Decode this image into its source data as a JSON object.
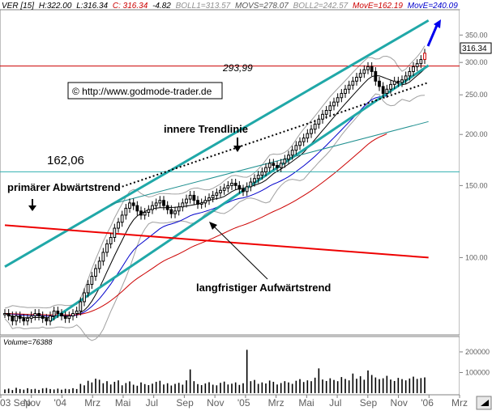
{
  "header": {
    "symbol": "VER [15]",
    "high": "H:322.00",
    "low": "L:316.34",
    "close": "C: 316.34",
    "change": "-4.82",
    "boll1": "BOLL1=313.57",
    "movs": "MOVS=278.07",
    "boll2": "BOLL2=242.57",
    "move1": "MovE=162.19",
    "move2": "MovE=240.09"
  },
  "watermark": "© http://www.godmode-trader.de",
  "annotations": {
    "level_293": "293,99",
    "level_162": "162,06",
    "inner_trendline": "innere Trendlinie",
    "primary_downtrend": "primärer Abwärtstrend",
    "longterm_uptrend": "langfristiger Aufwärtstrend"
  },
  "last_price_label": "316.34",
  "volume_label": "Volume=76388",
  "colors": {
    "candle": "#000000",
    "bollinger": "#a0a0a0",
    "movs": "#000000",
    "ema_red": "#cc0000",
    "ema_blue": "#0000cc",
    "channel": "#20a8a8",
    "downtrend": "#ee0000",
    "horizontal": "#cc0000",
    "cyan_level": "#30b0b0"
  },
  "chart_data": {
    "type": "candlestick",
    "y_scale": "log",
    "ylim": [
      65,
      400
    ],
    "y_ticks": [
      100,
      150,
      200,
      250,
      300,
      350
    ],
    "y_tick_labels": [
      "100.00",
      "150.00",
      "200.00",
      "250.00",
      "300.00",
      "350.00"
    ],
    "x_tick_labels": [
      "03 Sep",
      "Nov",
      "'04",
      "Mrz",
      "Mai",
      "Jul",
      "Sep",
      "Nov",
      "'05",
      "Mrz",
      "Mai",
      "Jul",
      "Sep",
      "Nov",
      "'06",
      "Mrz"
    ],
    "close": [
      73,
      72,
      70,
      72,
      71,
      70,
      71,
      72,
      73,
      72,
      71,
      70,
      72,
      74,
      73,
      72,
      71,
      72,
      73,
      74,
      78,
      82,
      86,
      90,
      94,
      98,
      103,
      108,
      112,
      118,
      122,
      127,
      132,
      136,
      134,
      130,
      127,
      129,
      131,
      134,
      136,
      138,
      134,
      131,
      128,
      130,
      133,
      136,
      139,
      142,
      138,
      135,
      136,
      138,
      140,
      142,
      144,
      146,
      148,
      150,
      152,
      150,
      147,
      145,
      149,
      153,
      156,
      159,
      162,
      166,
      170,
      168,
      166,
      170,
      174,
      178,
      183,
      188,
      192,
      196,
      201,
      206,
      212,
      218,
      224,
      229,
      235,
      240,
      246,
      252,
      258,
      264,
      270,
      276,
      282,
      288,
      293,
      285,
      270,
      262,
      252,
      258,
      265,
      270,
      268,
      272,
      278,
      285,
      293,
      298,
      305,
      316
    ],
    "volume_max": 200000,
    "volume_ticks": [
      100000,
      200000
    ],
    "volume_tick_labels": [
      "100000",
      "200000"
    ],
    "volume": [
      18000,
      22000,
      15000,
      26000,
      20000,
      17000,
      24000,
      19000,
      21000,
      16000,
      23000,
      25000,
      20000,
      18000,
      22000,
      17000,
      21000,
      19000,
      24000,
      20000,
      45000,
      38000,
      60000,
      52000,
      70000,
      65000,
      48000,
      58000,
      42000,
      55000,
      62000,
      38000,
      49000,
      57000,
      41000,
      36000,
      52000,
      44000,
      39000,
      46000,
      55000,
      60000,
      42000,
      48000,
      37000,
      45000,
      50000,
      41000,
      62000,
      115000,
      58000,
      44000,
      39000,
      47000,
      53000,
      41000,
      38000,
      50000,
      56000,
      42000,
      46000,
      52000,
      40000,
      48000,
      210000,
      58000,
      64000,
      45000,
      52000,
      47000,
      61000,
      55000,
      42000,
      49000,
      58000,
      52000,
      45000,
      60000,
      68000,
      54000,
      62000,
      58000,
      75000,
      120000,
      66000,
      59000,
      72000,
      64000,
      58000,
      78000,
      69000,
      62000,
      95000,
      70000,
      82000,
      65000,
      110000,
      88000,
      76000,
      68000,
      72000,
      84000,
      66000,
      59000,
      74000,
      68000,
      62000,
      71000,
      80000,
      69000,
      73000,
      76388
    ],
    "horizontal_levels": [
      293.99,
      162.06
    ],
    "series": [
      {
        "name": "BOLL1",
        "last": 313.57
      },
      {
        "name": "MOVS",
        "last": 278.07
      },
      {
        "name": "BOLL2",
        "last": 242.57
      },
      {
        "name": "MovE",
        "last": 162.19
      },
      {
        "name": "MovE",
        "last": 240.09
      }
    ],
    "trendlines": [
      {
        "from": [
          0,
          95
        ],
        "to": [
          112,
          380
        ]
      },
      {
        "from": [
          12,
          70
        ],
        "to": [
          112,
          295
        ]
      },
      {
        "from": [
          30,
          148
        ],
        "to": [
          112,
          268
        ]
      },
      {
        "from": [
          0,
          120
        ],
        "to": [
          112,
          100
        ]
      },
      {
        "from": [
          28,
          135
        ],
        "to": [
          112,
          215
        ]
      }
    ]
  }
}
